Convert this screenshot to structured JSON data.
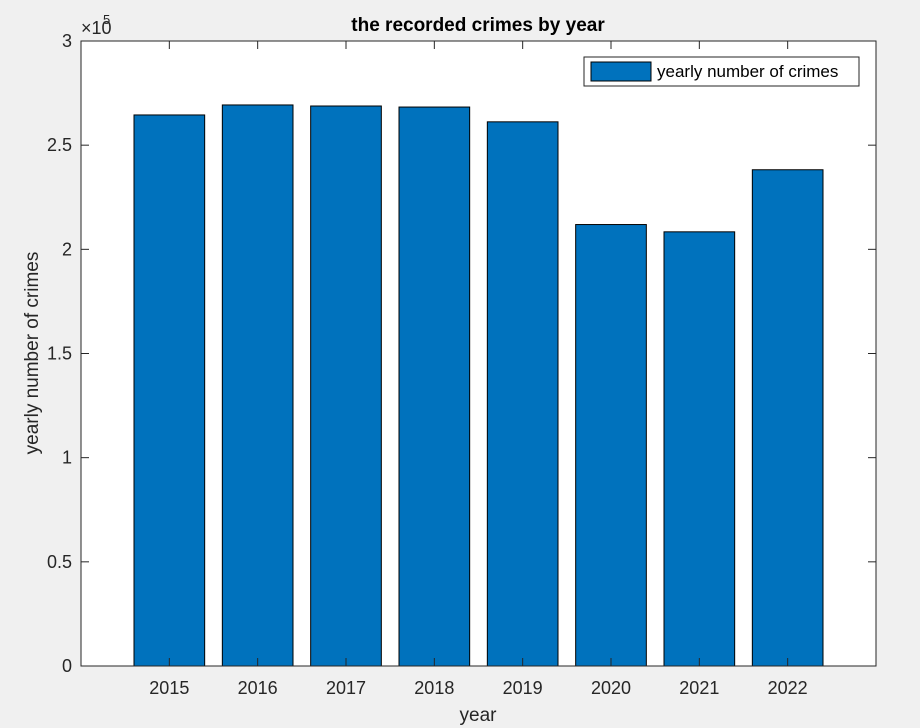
{
  "chart_data": {
    "type": "bar",
    "title": "the recorded crimes by year",
    "xlabel": "year",
    "ylabel": "yearly number of crimes",
    "categories": [
      "2015",
      "2016",
      "2017",
      "2018",
      "2019",
      "2020",
      "2021",
      "2022"
    ],
    "series": [
      {
        "name": "yearly number of crimes",
        "values": [
          264500,
          269300,
          268800,
          268300,
          261200,
          211900,
          208400,
          238200
        ],
        "color": "#0072bd"
      }
    ],
    "ylim": [
      0,
      300000
    ],
    "y_ticks": [
      0,
      50000,
      100000,
      150000,
      200000,
      250000,
      300000
    ],
    "y_tick_labels": [
      "0",
      "0.5",
      "1",
      "1.5",
      "2",
      "2.5",
      "3"
    ],
    "y_exponent_base": "×10",
    "y_exponent_power": "5",
    "legend_position": "top-right",
    "grid": false
  }
}
